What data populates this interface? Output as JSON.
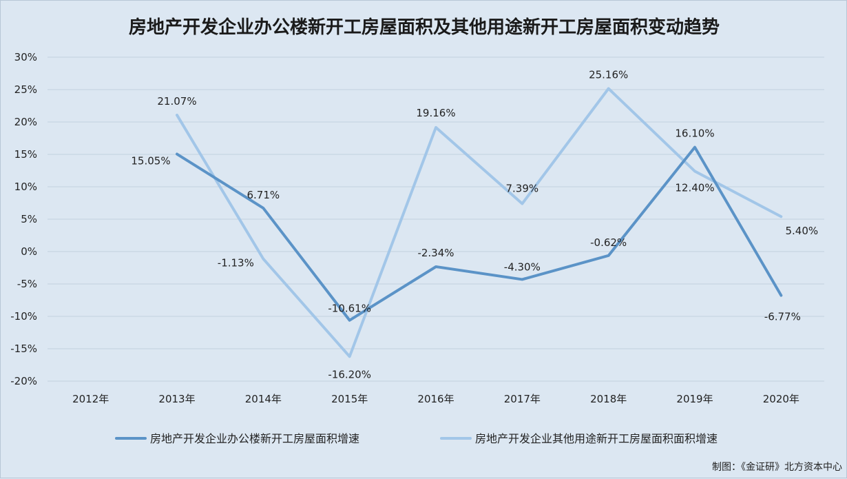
{
  "chart_data": {
    "type": "line",
    "title": "房地产开发企业办公楼新开工房屋面积及其他用途新开工房屋面积变动趋势",
    "categories": [
      "2012年",
      "2013年",
      "2014年",
      "2015年",
      "2016年",
      "2017年",
      "2018年",
      "2019年",
      "2020年"
    ],
    "ylim": [
      -20,
      30
    ],
    "yticks": [
      30,
      25,
      20,
      15,
      10,
      5,
      0,
      -5,
      -10,
      -15,
      -20
    ],
    "ytick_labels": [
      "30%",
      "25%",
      "20%",
      "15%",
      "10%",
      "5%",
      "0%",
      "-5%",
      "-10%",
      "-15%",
      "-20%"
    ],
    "grid": true,
    "legend_position": "bottom",
    "series": [
      {
        "name": "房地产开发企业办公楼新开工房屋面积增速",
        "color": "#5b93c7",
        "values": [
          null,
          15.05,
          6.71,
          -10.61,
          -2.34,
          -4.3,
          -0.62,
          16.1,
          -6.77
        ],
        "labels": [
          "",
          "15.05%",
          "6.71%",
          "-10.61%",
          "-2.34%",
          "-4.30%",
          "-0.62%",
          "16.10%",
          "-6.77%"
        ]
      },
      {
        "name": "房地产开发企业其他用途新开工房屋面积面积增速",
        "color": "#a2c6e8",
        "values": [
          null,
          21.07,
          -1.13,
          -16.2,
          19.16,
          7.39,
          25.16,
          12.4,
          5.4
        ],
        "labels": [
          "",
          "21.07%",
          "-1.13%",
          "-16.20%",
          "19.16%",
          "7.39%",
          "25.16%",
          "12.40%",
          "5.40%"
        ]
      }
    ],
    "credit": "制图：《金证研》北方资本中心"
  }
}
